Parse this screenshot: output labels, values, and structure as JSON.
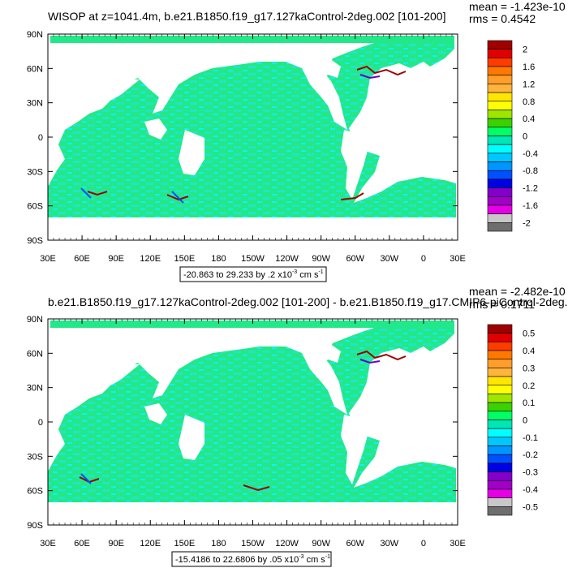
{
  "chart_data": [
    {
      "type": "heatmap",
      "title": "WISOP at z=1041.4m, b.e21.B1850.f19_g17.127kaControl-2deg.002 [101-200]",
      "stats": {
        "mean": "mean = -1.423e-10",
        "rms": "rms = 0.4542"
      },
      "range_label": "-20.863 to 29.233 by .2 x10",
      "range_exp": "-3",
      "range_units": " cm s",
      "range_units_exp": "-1",
      "x_ticks": [
        "30E",
        "60E",
        "90E",
        "120E",
        "150E",
        "180",
        "150W",
        "120W",
        "90W",
        "60W",
        "30W",
        "0",
        "30E"
      ],
      "y_ticks": [
        "90N",
        "60N",
        "30N",
        "0",
        "30S",
        "60S",
        "90S"
      ],
      "colorbar": {
        "labels": [
          "2",
          "1.6",
          "1.2",
          "0.8",
          "0.4",
          "0",
          "-0.4",
          "-0.8",
          "-1.2",
          "-1.6",
          "-2"
        ],
        "colors": [
          "#a00000",
          "#e00000",
          "#ff3c00",
          "#ff7800",
          "#ff9e2a",
          "#ffb43c",
          "#ffe600",
          "#ffff00",
          "#9ee600",
          "#3cd200",
          "#00ff66",
          "#00e6b4",
          "#00ffff",
          "#00c8ff",
          "#0096ff",
          "#0050ff",
          "#0000e6",
          "#8200c8",
          "#a000c8",
          "#e600e6",
          "#c8c8c8",
          "#6e6e6e"
        ]
      }
    },
    {
      "type": "heatmap",
      "title": "b.e21.B1850.f19_g17.127kaControl-2deg.002 [101-200] - b.e21.B1850.f19_g17.CMIP6-piControl-2deg.0",
      "stats": {
        "mean": "mean = -2.482e-10",
        "rms": "rms = 0.1711"
      },
      "range_label": "-15.4186 to 22.6806 by .05 x10",
      "range_exp": "-3",
      "range_units": " cm s",
      "range_units_exp": "-1",
      "x_ticks": [
        "30E",
        "60E",
        "90E",
        "120E",
        "150E",
        "180",
        "150W",
        "120W",
        "90W",
        "60W",
        "30W",
        "0",
        "30E"
      ],
      "y_ticks": [
        "90N",
        "60N",
        "30N",
        "0",
        "30S",
        "60S",
        "90S"
      ],
      "colorbar": {
        "labels": [
          "0.5",
          "0.4",
          "0.3",
          "0.2",
          "0.1",
          "0",
          "-0.1",
          "-0.2",
          "-0.3",
          "-0.4",
          "-0.5"
        ],
        "colors": [
          "#a00000",
          "#e00000",
          "#ff3c00",
          "#ff7800",
          "#ff9e2a",
          "#ffb43c",
          "#ffe600",
          "#ffff00",
          "#9ee600",
          "#3cd200",
          "#00ff66",
          "#00e6b4",
          "#00ffff",
          "#00c8ff",
          "#0096ff",
          "#0050ff",
          "#0000e6",
          "#8200c8",
          "#a000c8",
          "#e600e6",
          "#c8c8c8",
          "#6e6e6e"
        ]
      }
    }
  ]
}
